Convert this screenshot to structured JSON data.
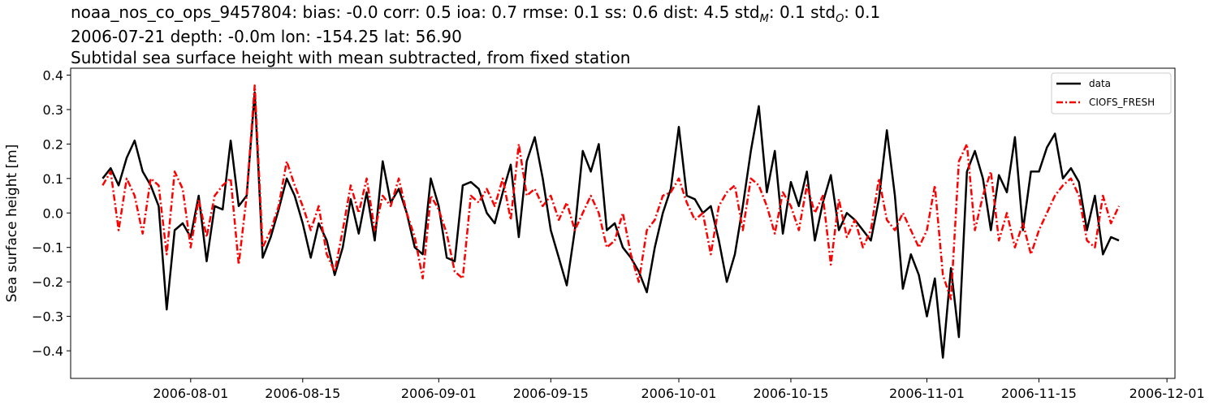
{
  "header": {
    "metrics_prefix": "noaa_nos_co_ops_9457804: bias: -0.0  corr: 0.5  ioa: 0.7  rmse: 0.1  ss: 0.6  dist: 4.5  std",
    "std_m_sub": "M",
    "std_m_value": ": 0.1  std",
    "std_o_sub": "O",
    "std_o_value": ": 0.1",
    "line2": "2006-07-21 depth: -0.0m lon: -154.25 lat: 56.90",
    "line3": "Subtidal sea surface height with mean subtracted, from fixed station"
  },
  "colors": {
    "data": "#000000",
    "model": "#ff0000"
  },
  "chart_data": {
    "type": "line",
    "title": "Subtidal sea surface height with mean subtracted, from fixed station",
    "xlabel": "",
    "ylabel": "Sea surface height [m]",
    "xlim": [
      "2006-07-17",
      "2006-12-02"
    ],
    "ylim": [
      -0.48,
      0.42
    ],
    "x_ticks": [
      "2006-08-01",
      "2006-08-15",
      "2006-09-01",
      "2006-09-15",
      "2006-10-01",
      "2006-10-15",
      "2006-11-01",
      "2006-11-15",
      "2006-12-01"
    ],
    "y_ticks": [
      0.4,
      0.3,
      0.2,
      0.1,
      0.0,
      -0.1,
      -0.2,
      -0.3,
      -0.4
    ],
    "y_tick_labels": [
      "0.4",
      "0.3",
      "0.2",
      "0.1",
      "0.0",
      "−0.1",
      "−0.2",
      "−0.3",
      "−0.4"
    ],
    "grid": false,
    "legend_position": "top-right",
    "series": [
      {
        "name": "data",
        "style": "solid",
        "points": [
          [
            "2006-07-21",
            0.1
          ],
          [
            "2006-07-22",
            0.13
          ],
          [
            "2006-07-23",
            0.08
          ],
          [
            "2006-07-24",
            0.16
          ],
          [
            "2006-07-25",
            0.21
          ],
          [
            "2006-07-26",
            0.12
          ],
          [
            "2006-07-27",
            0.08
          ],
          [
            "2006-07-28",
            0.02
          ],
          [
            "2006-07-29",
            -0.28
          ],
          [
            "2006-07-30",
            -0.05
          ],
          [
            "2006-07-31",
            -0.03
          ],
          [
            "2006-08-01",
            -0.07
          ],
          [
            "2006-08-02",
            0.05
          ],
          [
            "2006-08-03",
            -0.14
          ],
          [
            "2006-08-04",
            0.02
          ],
          [
            "2006-08-05",
            0.01
          ],
          [
            "2006-08-06",
            0.21
          ],
          [
            "2006-08-07",
            0.02
          ],
          [
            "2006-08-08",
            0.05
          ],
          [
            "2006-08-09",
            0.35
          ],
          [
            "2006-08-10",
            -0.13
          ],
          [
            "2006-08-11",
            -0.07
          ],
          [
            "2006-08-12",
            0.01
          ],
          [
            "2006-08-13",
            0.1
          ],
          [
            "2006-08-14",
            0.05
          ],
          [
            "2006-08-15",
            -0.03
          ],
          [
            "2006-08-16",
            -0.13
          ],
          [
            "2006-08-17",
            -0.03
          ],
          [
            "2006-08-18",
            -0.08
          ],
          [
            "2006-08-19",
            -0.18
          ],
          [
            "2006-08-20",
            -0.1
          ],
          [
            "2006-08-21",
            0.04
          ],
          [
            "2006-08-22",
            -0.06
          ],
          [
            "2006-08-23",
            0.06
          ],
          [
            "2006-08-24",
            -0.08
          ],
          [
            "2006-08-25",
            0.15
          ],
          [
            "2006-08-26",
            0.03
          ],
          [
            "2006-08-27",
            0.07
          ],
          [
            "2006-08-28",
            0.0
          ],
          [
            "2006-08-29",
            -0.1
          ],
          [
            "2006-08-30",
            -0.12
          ],
          [
            "2006-08-31",
            0.1
          ],
          [
            "2006-09-01",
            0.02
          ],
          [
            "2006-09-02",
            -0.13
          ],
          [
            "2006-09-03",
            -0.14
          ],
          [
            "2006-09-04",
            0.08
          ],
          [
            "2006-09-05",
            0.09
          ],
          [
            "2006-09-06",
            0.07
          ],
          [
            "2006-09-07",
            0.0
          ],
          [
            "2006-09-08",
            -0.03
          ],
          [
            "2006-09-09",
            0.06
          ],
          [
            "2006-09-10",
            0.14
          ],
          [
            "2006-09-11",
            -0.07
          ],
          [
            "2006-09-12",
            0.15
          ],
          [
            "2006-09-13",
            0.22
          ],
          [
            "2006-09-14",
            0.1
          ],
          [
            "2006-09-15",
            -0.05
          ],
          [
            "2006-09-16",
            -0.13
          ],
          [
            "2006-09-17",
            -0.21
          ],
          [
            "2006-09-18",
            -0.05
          ],
          [
            "2006-09-19",
            0.18
          ],
          [
            "2006-09-20",
            0.12
          ],
          [
            "2006-09-21",
            0.2
          ],
          [
            "2006-09-22",
            -0.05
          ],
          [
            "2006-09-23",
            -0.03
          ],
          [
            "2006-09-24",
            -0.1
          ],
          [
            "2006-09-25",
            -0.13
          ],
          [
            "2006-09-26",
            -0.17
          ],
          [
            "2006-09-27",
            -0.23
          ],
          [
            "2006-09-28",
            -0.1
          ],
          [
            "2006-09-29",
            0.0
          ],
          [
            "2006-09-30",
            0.07
          ],
          [
            "2006-10-01",
            0.25
          ],
          [
            "2006-10-02",
            0.05
          ],
          [
            "2006-10-03",
            0.04
          ],
          [
            "2006-10-04",
            0.0
          ],
          [
            "2006-10-05",
            0.02
          ],
          [
            "2006-10-06",
            -0.08
          ],
          [
            "2006-10-07",
            -0.2
          ],
          [
            "2006-10-08",
            -0.12
          ],
          [
            "2006-10-09",
            0.02
          ],
          [
            "2006-10-10",
            0.18
          ],
          [
            "2006-10-11",
            0.31
          ],
          [
            "2006-10-12",
            0.06
          ],
          [
            "2006-10-13",
            0.18
          ],
          [
            "2006-10-14",
            -0.06
          ],
          [
            "2006-10-15",
            0.09
          ],
          [
            "2006-10-16",
            0.02
          ],
          [
            "2006-10-17",
            0.12
          ],
          [
            "2006-10-18",
            -0.08
          ],
          [
            "2006-10-19",
            0.03
          ],
          [
            "2006-10-20",
            0.11
          ],
          [
            "2006-10-21",
            -0.05
          ],
          [
            "2006-10-22",
            0.0
          ],
          [
            "2006-10-23",
            -0.02
          ],
          [
            "2006-10-24",
            -0.05
          ],
          [
            "2006-10-25",
            -0.08
          ],
          [
            "2006-10-26",
            0.04
          ],
          [
            "2006-10-27",
            0.24
          ],
          [
            "2006-10-28",
            0.05
          ],
          [
            "2006-10-29",
            -0.22
          ],
          [
            "2006-10-30",
            -0.12
          ],
          [
            "2006-10-31",
            -0.18
          ],
          [
            "2006-11-01",
            -0.3
          ],
          [
            "2006-11-02",
            -0.19
          ],
          [
            "2006-11-03",
            -0.42
          ],
          [
            "2006-11-04",
            -0.16
          ],
          [
            "2006-11-05",
            -0.36
          ],
          [
            "2006-11-06",
            0.12
          ],
          [
            "2006-11-07",
            0.18
          ],
          [
            "2006-11-08",
            0.1
          ],
          [
            "2006-11-09",
            -0.05
          ],
          [
            "2006-11-10",
            0.11
          ],
          [
            "2006-11-11",
            0.06
          ],
          [
            "2006-11-12",
            0.22
          ],
          [
            "2006-11-13",
            -0.05
          ],
          [
            "2006-11-14",
            0.12
          ],
          [
            "2006-11-15",
            0.12
          ],
          [
            "2006-11-16",
            0.19
          ],
          [
            "2006-11-17",
            0.23
          ],
          [
            "2006-11-18",
            0.1
          ],
          [
            "2006-11-19",
            0.13
          ],
          [
            "2006-11-20",
            0.09
          ],
          [
            "2006-11-21",
            -0.05
          ],
          [
            "2006-11-22",
            0.05
          ],
          [
            "2006-11-23",
            -0.12
          ],
          [
            "2006-11-24",
            -0.07
          ],
          [
            "2006-11-25",
            -0.08
          ]
        ]
      },
      {
        "name": "CIOFS_FRESH",
        "style": "dash-dot",
        "points": [
          [
            "2006-07-21",
            0.08
          ],
          [
            "2006-07-22",
            0.12
          ],
          [
            "2006-07-23",
            -0.05
          ],
          [
            "2006-07-24",
            0.1
          ],
          [
            "2006-07-25",
            0.05
          ],
          [
            "2006-07-26",
            -0.06
          ],
          [
            "2006-07-27",
            0.1
          ],
          [
            "2006-07-28",
            0.08
          ],
          [
            "2006-07-29",
            -0.12
          ],
          [
            "2006-07-30",
            0.12
          ],
          [
            "2006-07-31",
            0.07
          ],
          [
            "2006-08-01",
            -0.1
          ],
          [
            "2006-08-02",
            0.04
          ],
          [
            "2006-08-03",
            -0.07
          ],
          [
            "2006-08-04",
            0.05
          ],
          [
            "2006-08-05",
            0.08
          ],
          [
            "2006-08-06",
            0.1
          ],
          [
            "2006-08-07",
            -0.15
          ],
          [
            "2006-08-08",
            0.05
          ],
          [
            "2006-08-09",
            0.37
          ],
          [
            "2006-08-10",
            -0.1
          ],
          [
            "2006-08-11",
            -0.05
          ],
          [
            "2006-08-12",
            0.02
          ],
          [
            "2006-08-13",
            0.15
          ],
          [
            "2006-08-14",
            0.08
          ],
          [
            "2006-08-15",
            0.02
          ],
          [
            "2006-08-16",
            -0.05
          ],
          [
            "2006-08-17",
            0.02
          ],
          [
            "2006-08-18",
            -0.12
          ],
          [
            "2006-08-19",
            -0.17
          ],
          [
            "2006-08-20",
            -0.05
          ],
          [
            "2006-08-21",
            0.08
          ],
          [
            "2006-08-22",
            0.0
          ],
          [
            "2006-08-23",
            0.1
          ],
          [
            "2006-08-24",
            -0.05
          ],
          [
            "2006-08-25",
            0.05
          ],
          [
            "2006-08-26",
            0.02
          ],
          [
            "2006-08-27",
            0.1
          ],
          [
            "2006-08-28",
            0.0
          ],
          [
            "2006-08-29",
            -0.07
          ],
          [
            "2006-08-30",
            -0.19
          ],
          [
            "2006-08-31",
            0.05
          ],
          [
            "2006-09-01",
            0.01
          ],
          [
            "2006-09-02",
            -0.06
          ],
          [
            "2006-09-03",
            -0.17
          ],
          [
            "2006-09-04",
            -0.19
          ],
          [
            "2006-09-05",
            0.05
          ],
          [
            "2006-09-06",
            0.03
          ],
          [
            "2006-09-07",
            0.07
          ],
          [
            "2006-09-08",
            0.02
          ],
          [
            "2006-09-09",
            0.1
          ],
          [
            "2006-09-10",
            -0.02
          ],
          [
            "2006-09-11",
            0.2
          ],
          [
            "2006-09-12",
            0.05
          ],
          [
            "2006-09-13",
            0.07
          ],
          [
            "2006-09-14",
            0.02
          ],
          [
            "2006-09-15",
            0.05
          ],
          [
            "2006-09-16",
            -0.02
          ],
          [
            "2006-09-17",
            0.03
          ],
          [
            "2006-09-18",
            -0.05
          ],
          [
            "2006-09-19",
            0.0
          ],
          [
            "2006-09-20",
            0.05
          ],
          [
            "2006-09-21",
            0.0
          ],
          [
            "2006-09-22",
            -0.1
          ],
          [
            "2006-09-23",
            -0.08
          ],
          [
            "2006-09-24",
            0.0
          ],
          [
            "2006-09-25",
            -0.12
          ],
          [
            "2006-09-26",
            -0.2
          ],
          [
            "2006-09-27",
            -0.05
          ],
          [
            "2006-09-28",
            -0.02
          ],
          [
            "2006-09-29",
            0.05
          ],
          [
            "2006-09-30",
            0.06
          ],
          [
            "2006-10-01",
            0.1
          ],
          [
            "2006-10-02",
            0.03
          ],
          [
            "2006-10-03",
            -0.02
          ],
          [
            "2006-10-04",
            0.0
          ],
          [
            "2006-10-05",
            -0.12
          ],
          [
            "2006-10-06",
            0.02
          ],
          [
            "2006-10-07",
            0.06
          ],
          [
            "2006-10-08",
            0.08
          ],
          [
            "2006-10-09",
            -0.05
          ],
          [
            "2006-10-10",
            0.1
          ],
          [
            "2006-10-11",
            0.08
          ],
          [
            "2006-10-12",
            0.02
          ],
          [
            "2006-10-13",
            -0.06
          ],
          [
            "2006-10-14",
            0.06
          ],
          [
            "2006-10-15",
            0.02
          ],
          [
            "2006-10-16",
            -0.05
          ],
          [
            "2006-10-17",
            0.08
          ],
          [
            "2006-10-18",
            0.0
          ],
          [
            "2006-10-19",
            0.05
          ],
          [
            "2006-10-20",
            -0.15
          ],
          [
            "2006-10-21",
            0.04
          ],
          [
            "2006-10-22",
            -0.07
          ],
          [
            "2006-10-23",
            -0.02
          ],
          [
            "2006-10-24",
            -0.1
          ],
          [
            "2006-10-25",
            -0.05
          ],
          [
            "2006-10-26",
            0.1
          ],
          [
            "2006-10-27",
            -0.02
          ],
          [
            "2006-10-28",
            -0.05
          ],
          [
            "2006-10-29",
            0.0
          ],
          [
            "2006-10-30",
            -0.05
          ],
          [
            "2006-10-31",
            -0.1
          ],
          [
            "2006-11-01",
            -0.05
          ],
          [
            "2006-11-02",
            0.08
          ],
          [
            "2006-11-03",
            -0.18
          ],
          [
            "2006-11-04",
            -0.25
          ],
          [
            "2006-11-05",
            0.15
          ],
          [
            "2006-11-06",
            0.2
          ],
          [
            "2006-11-07",
            -0.05
          ],
          [
            "2006-11-08",
            0.05
          ],
          [
            "2006-11-09",
            0.12
          ],
          [
            "2006-11-10",
            -0.08
          ],
          [
            "2006-11-11",
            0.0
          ],
          [
            "2006-11-12",
            -0.1
          ],
          [
            "2006-11-13",
            -0.03
          ],
          [
            "2006-11-14",
            -0.12
          ],
          [
            "2006-11-15",
            -0.05
          ],
          [
            "2006-11-16",
            0.0
          ],
          [
            "2006-11-17",
            0.05
          ],
          [
            "2006-11-18",
            0.08
          ],
          [
            "2006-11-19",
            0.1
          ],
          [
            "2006-11-20",
            0.05
          ],
          [
            "2006-11-21",
            -0.08
          ],
          [
            "2006-11-22",
            -0.1
          ],
          [
            "2006-11-23",
            0.05
          ],
          [
            "2006-11-24",
            -0.03
          ],
          [
            "2006-11-25",
            0.02
          ]
        ]
      }
    ]
  }
}
